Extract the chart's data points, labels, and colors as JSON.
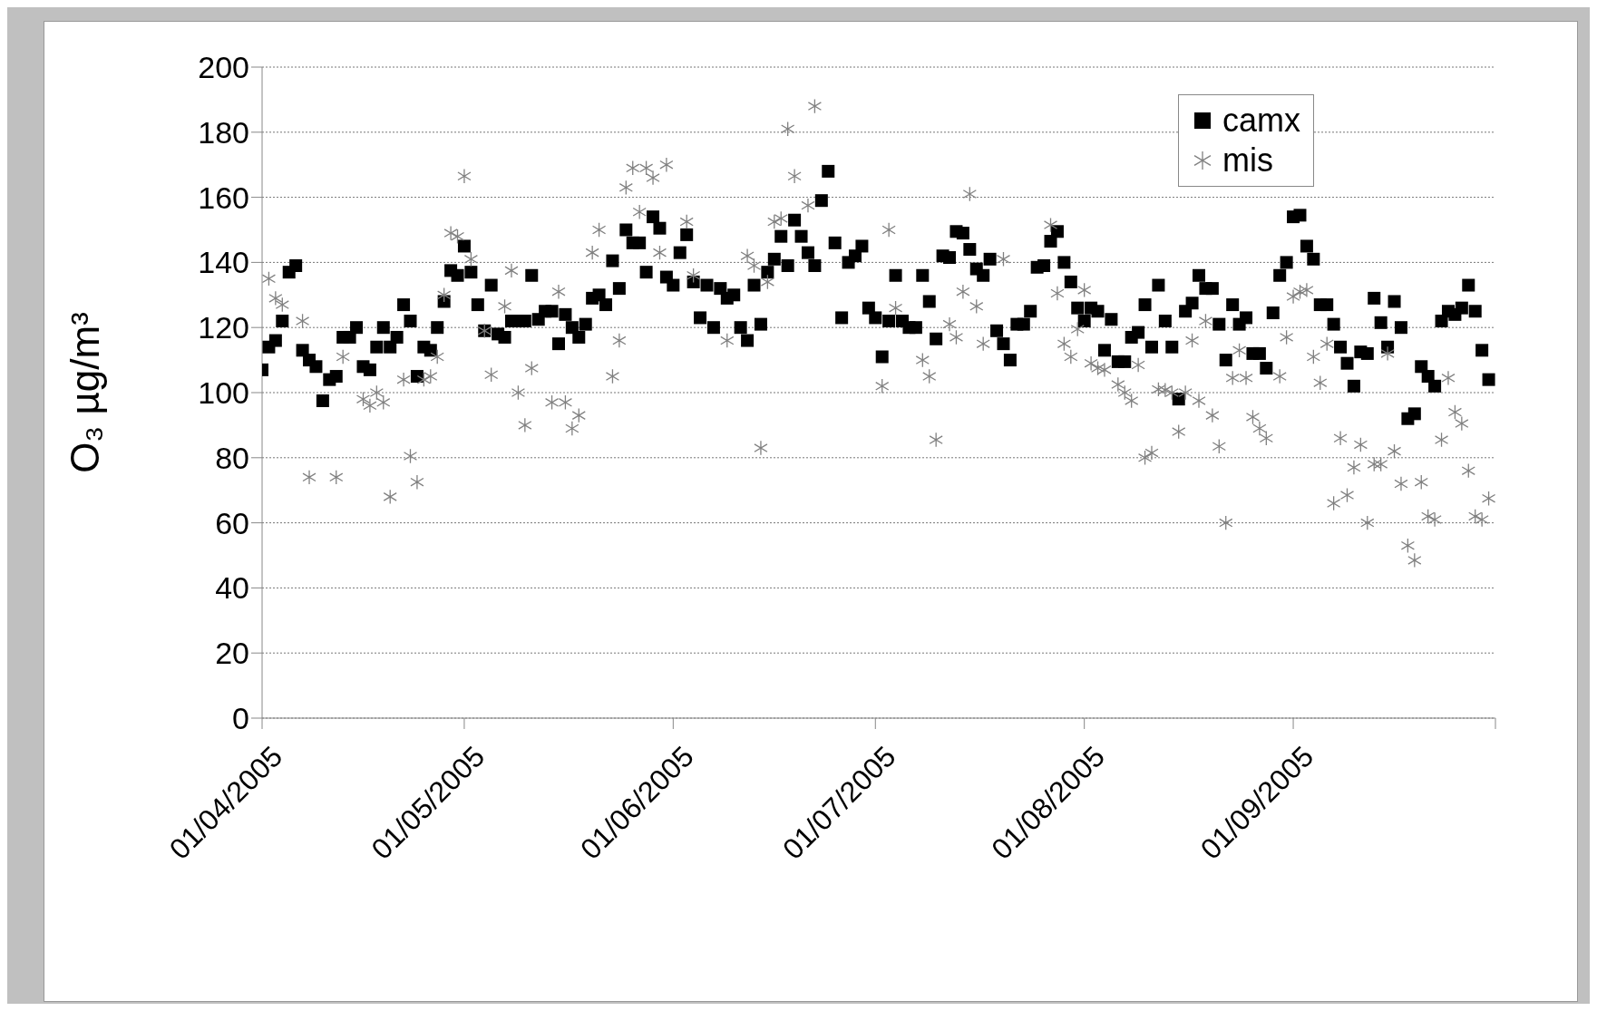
{
  "chart_data": {
    "type": "scatter",
    "ylabel": "O₃  µg/m³",
    "ylim": [
      0,
      200
    ],
    "yticks": [
      0,
      20,
      40,
      60,
      80,
      100,
      120,
      140,
      160,
      180,
      200
    ],
    "xlim": [
      "2005-04-01",
      "2005-10-01"
    ],
    "xticks": [
      {
        "value": "2005-04-01",
        "label": "01/04/2005"
      },
      {
        "value": "2005-05-01",
        "label": "01/05/2005"
      },
      {
        "value": "2005-06-01",
        "label": "01/06/2005"
      },
      {
        "value": "2005-07-01",
        "label": "01/07/2005"
      },
      {
        "value": "2005-08-01",
        "label": "01/08/2005"
      },
      {
        "value": "2005-09-01",
        "label": "01/09/2005"
      },
      {
        "value": "2005-10-01",
        "label": null
      }
    ],
    "grid": "y",
    "legend": "top right",
    "x": [
      "2005-04-01",
      "2005-04-02",
      "2005-04-03",
      "2005-04-04",
      "2005-04-05",
      "2005-04-06",
      "2005-04-07",
      "2005-04-08",
      "2005-04-09",
      "2005-04-10",
      "2005-04-11",
      "2005-04-12",
      "2005-04-13",
      "2005-04-14",
      "2005-04-15",
      "2005-04-16",
      "2005-04-17",
      "2005-04-18",
      "2005-04-19",
      "2005-04-20",
      "2005-04-21",
      "2005-04-22",
      "2005-04-23",
      "2005-04-24",
      "2005-04-25",
      "2005-04-26",
      "2005-04-27",
      "2005-04-28",
      "2005-04-29",
      "2005-04-30",
      "2005-05-01",
      "2005-05-02",
      "2005-05-03",
      "2005-05-04",
      "2005-05-05",
      "2005-05-06",
      "2005-05-07",
      "2005-05-08",
      "2005-05-09",
      "2005-05-10",
      "2005-05-11",
      "2005-05-12",
      "2005-05-13",
      "2005-05-14",
      "2005-05-15",
      "2005-05-16",
      "2005-05-17",
      "2005-05-18",
      "2005-05-19",
      "2005-05-20",
      "2005-05-21",
      "2005-05-22",
      "2005-05-23",
      "2005-05-24",
      "2005-05-25",
      "2005-05-26",
      "2005-05-27",
      "2005-05-28",
      "2005-05-29",
      "2005-05-30",
      "2005-05-31",
      "2005-06-01",
      "2005-06-02",
      "2005-06-03",
      "2005-06-04",
      "2005-06-05",
      "2005-06-06",
      "2005-06-07",
      "2005-06-08",
      "2005-06-09",
      "2005-06-10",
      "2005-06-11",
      "2005-06-12",
      "2005-06-13",
      "2005-06-14",
      "2005-06-15",
      "2005-06-16",
      "2005-06-17",
      "2005-06-18",
      "2005-06-19",
      "2005-06-20",
      "2005-06-21",
      "2005-06-22",
      "2005-06-23",
      "2005-06-24",
      "2005-06-25",
      "2005-06-26",
      "2005-06-27",
      "2005-06-28",
      "2005-06-29",
      "2005-06-30",
      "2005-07-01",
      "2005-07-02",
      "2005-07-03",
      "2005-07-04",
      "2005-07-05",
      "2005-07-06",
      "2005-07-07",
      "2005-07-08",
      "2005-07-09",
      "2005-07-10",
      "2005-07-11",
      "2005-07-12",
      "2005-07-13",
      "2005-07-14",
      "2005-07-15",
      "2005-07-16",
      "2005-07-17",
      "2005-07-18",
      "2005-07-19",
      "2005-07-20",
      "2005-07-21",
      "2005-07-22",
      "2005-07-23",
      "2005-07-24",
      "2005-07-25",
      "2005-07-26",
      "2005-07-27",
      "2005-07-28",
      "2005-07-29",
      "2005-07-30",
      "2005-07-31",
      "2005-08-01",
      "2005-08-02",
      "2005-08-03",
      "2005-08-04",
      "2005-08-05",
      "2005-08-06",
      "2005-08-07",
      "2005-08-08",
      "2005-08-09",
      "2005-08-10",
      "2005-08-11",
      "2005-08-12",
      "2005-08-13",
      "2005-08-14",
      "2005-08-15",
      "2005-08-16",
      "2005-08-17",
      "2005-08-18",
      "2005-08-19",
      "2005-08-20",
      "2005-08-21",
      "2005-08-22",
      "2005-08-23",
      "2005-08-24",
      "2005-08-25",
      "2005-08-26",
      "2005-08-27",
      "2005-08-28",
      "2005-08-29",
      "2005-08-30",
      "2005-08-31",
      "2005-09-01",
      "2005-09-02",
      "2005-09-03",
      "2005-09-04",
      "2005-09-05",
      "2005-09-06",
      "2005-09-07",
      "2005-09-08",
      "2005-09-09",
      "2005-09-10",
      "2005-09-11",
      "2005-09-12",
      "2005-09-13",
      "2005-09-14",
      "2005-09-15",
      "2005-09-16",
      "2005-09-17",
      "2005-09-18",
      "2005-09-19",
      "2005-09-20",
      "2005-09-21",
      "2005-09-22",
      "2005-09-23",
      "2005-09-24",
      "2005-09-25",
      "2005-09-26",
      "2005-09-27",
      "2005-09-28",
      "2005-09-29",
      "2005-09-30"
    ],
    "series": [
      {
        "name": "camx",
        "color": "#000000",
        "marker": "square",
        "values": [
          107,
          114,
          116,
          122,
          137,
          139,
          113,
          110,
          108,
          97.5,
          104,
          105,
          117,
          117,
          120,
          108,
          107,
          114,
          120,
          114,
          117,
          127,
          122,
          105,
          114,
          113,
          120,
          128,
          137.5,
          136,
          145,
          137,
          127,
          119,
          133,
          118,
          117,
          122,
          122,
          122,
          136,
          122.5,
          125,
          125,
          115,
          124,
          120,
          117,
          121,
          129,
          130,
          127,
          140.5,
          132,
          150,
          146,
          146,
          137,
          154,
          150.5,
          135.5,
          133,
          143,
          148.5,
          134,
          123,
          133,
          120,
          132,
          129,
          130,
          120,
          116,
          133,
          121,
          137,
          141,
          148,
          139,
          153,
          148,
          143,
          139,
          159,
          168,
          146,
          123,
          140,
          142,
          145,
          126,
          123,
          111,
          122,
          136,
          122,
          120,
          120,
          136,
          128,
          116.5,
          142,
          141.5,
          149.5,
          149,
          144,
          138,
          136,
          141,
          119,
          115,
          110,
          121,
          121,
          125,
          138.5,
          139,
          146.5,
          149.5,
          140,
          134,
          126,
          122,
          126,
          125,
          113,
          122.5,
          109.5,
          109.5,
          117,
          118.5,
          127,
          114,
          133,
          122,
          114,
          98,
          125,
          127.5,
          136,
          132,
          132,
          121,
          110,
          127,
          121,
          123,
          112,
          112,
          107.5,
          124.5,
          136,
          140,
          154,
          154.5,
          145,
          141,
          127,
          127,
          121,
          114,
          109,
          102,
          112.5,
          112,
          129,
          121.5,
          114,
          128,
          120,
          92,
          93.5,
          108,
          105,
          102,
          122,
          125,
          124,
          126,
          133,
          125,
          113,
          104
        ]
      },
      {
        "name": "mis",
        "color": "#808080",
        "marker": "cross",
        "values": [
          null,
          135,
          129,
          127,
          null,
          null,
          122,
          74,
          null,
          null,
          null,
          74,
          111,
          null,
          null,
          98,
          96,
          100,
          97,
          68,
          null,
          104,
          80.5,
          72.5,
          104,
          105,
          111,
          130,
          149,
          148,
          166.5,
          141,
          null,
          119,
          105.5,
          null,
          126.5,
          137.5,
          100,
          90,
          107.5,
          null,
          null,
          97,
          131,
          97,
          89,
          93,
          null,
          143,
          150,
          null,
          105,
          116,
          163,
          169,
          155.5,
          169,
          166,
          143,
          170,
          null,
          null,
          152.5,
          136,
          null,
          null,
          null,
          null,
          116,
          null,
          null,
          142,
          139,
          83,
          134,
          152.5,
          153.5,
          181,
          166.5,
          null,
          157.5,
          188,
          null,
          null,
          null,
          null,
          null,
          null,
          null,
          null,
          null,
          102,
          150,
          126,
          null,
          null,
          null,
          110,
          105,
          85.5,
          null,
          121,
          117,
          131,
          161,
          126.5,
          115,
          null,
          null,
          141,
          null,
          null,
          null,
          null,
          null,
          null,
          151.5,
          130.5,
          115,
          111,
          119.5,
          131.5,
          109,
          107.5,
          107,
          null,
          102.5,
          100,
          97.5,
          108.5,
          80,
          81.5,
          101,
          100.8,
          100,
          88,
          100,
          116,
          97.5,
          122,
          93,
          83.5,
          60,
          104.5,
          113,
          104.5,
          92.5,
          89,
          86,
          null,
          105,
          117,
          129.5,
          131,
          131.5,
          111,
          103,
          115,
          66,
          86,
          68.5,
          77,
          84,
          60,
          78,
          78,
          112,
          82,
          72,
          53,
          48.5,
          72.5,
          62,
          61,
          85.5,
          104.5,
          94,
          90.5,
          76,
          62,
          61,
          67.5
        ]
      }
    ]
  }
}
